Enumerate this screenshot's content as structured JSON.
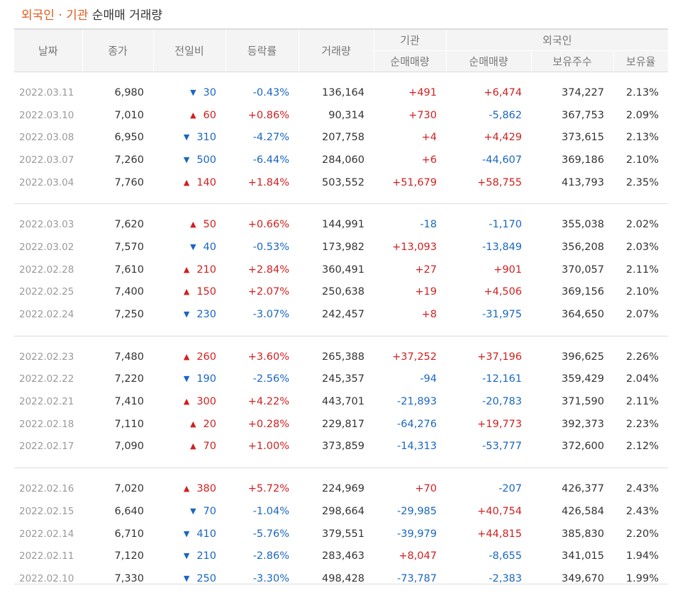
{
  "title": {
    "highlight": "외국인 · 기관",
    "rest": " 순매매 거래량"
  },
  "headers": {
    "date": "날짜",
    "close": "종가",
    "change": "전일비",
    "rate": "등락률",
    "volume": "거래량",
    "institution": "기관",
    "foreign": "외국인",
    "inst_net": "순매매량",
    "foreign_net": "순매매량",
    "holdings": "보유주수",
    "ratio": "보유율"
  },
  "colors": {
    "up": "#d11f1f",
    "down": "#1a66c2",
    "title_accent": "#e05a1e"
  },
  "icons": {
    "up": "up-triangle-icon",
    "down": "down-triangle-icon"
  },
  "groups": [
    [
      {
        "date": "2022.03.11",
        "close": "6,980",
        "dir": "down",
        "change": "30",
        "rate": "-0.43%",
        "volume": "136,164",
        "inst": "+491",
        "foreign": "+6,474",
        "holdings": "374,227",
        "ratio": "2.13%"
      },
      {
        "date": "2022.03.10",
        "close": "7,010",
        "dir": "up",
        "change": "60",
        "rate": "+0.86%",
        "volume": "90,314",
        "inst": "+730",
        "foreign": "-5,862",
        "holdings": "367,753",
        "ratio": "2.09%"
      },
      {
        "date": "2022.03.08",
        "close": "6,950",
        "dir": "down",
        "change": "310",
        "rate": "-4.27%",
        "volume": "207,758",
        "inst": "+4",
        "foreign": "+4,429",
        "holdings": "373,615",
        "ratio": "2.13%"
      },
      {
        "date": "2022.03.07",
        "close": "7,260",
        "dir": "down",
        "change": "500",
        "rate": "-6.44%",
        "volume": "284,060",
        "inst": "+6",
        "foreign": "-44,607",
        "holdings": "369,186",
        "ratio": "2.10%"
      },
      {
        "date": "2022.03.04",
        "close": "7,760",
        "dir": "up",
        "change": "140",
        "rate": "+1.84%",
        "volume": "503,552",
        "inst": "+51,679",
        "foreign": "+58,755",
        "holdings": "413,793",
        "ratio": "2.35%"
      }
    ],
    [
      {
        "date": "2022.03.03",
        "close": "7,620",
        "dir": "up",
        "change": "50",
        "rate": "+0.66%",
        "volume": "144,991",
        "inst": "-18",
        "foreign": "-1,170",
        "holdings": "355,038",
        "ratio": "2.02%"
      },
      {
        "date": "2022.03.02",
        "close": "7,570",
        "dir": "down",
        "change": "40",
        "rate": "-0.53%",
        "volume": "173,982",
        "inst": "+13,093",
        "foreign": "-13,849",
        "holdings": "356,208",
        "ratio": "2.03%"
      },
      {
        "date": "2022.02.28",
        "close": "7,610",
        "dir": "up",
        "change": "210",
        "rate": "+2.84%",
        "volume": "360,491",
        "inst": "+27",
        "foreign": "+901",
        "holdings": "370,057",
        "ratio": "2.11%"
      },
      {
        "date": "2022.02.25",
        "close": "7,400",
        "dir": "up",
        "change": "150",
        "rate": "+2.07%",
        "volume": "250,638",
        "inst": "+19",
        "foreign": "+4,506",
        "holdings": "369,156",
        "ratio": "2.10%"
      },
      {
        "date": "2022.02.24",
        "close": "7,250",
        "dir": "down",
        "change": "230",
        "rate": "-3.07%",
        "volume": "242,457",
        "inst": "+8",
        "foreign": "-31,975",
        "holdings": "364,650",
        "ratio": "2.07%"
      }
    ],
    [
      {
        "date": "2022.02.23",
        "close": "7,480",
        "dir": "up",
        "change": "260",
        "rate": "+3.60%",
        "volume": "265,388",
        "inst": "+37,252",
        "foreign": "+37,196",
        "holdings": "396,625",
        "ratio": "2.26%"
      },
      {
        "date": "2022.02.22",
        "close": "7,220",
        "dir": "down",
        "change": "190",
        "rate": "-2.56%",
        "volume": "245,357",
        "inst": "-94",
        "foreign": "-12,161",
        "holdings": "359,429",
        "ratio": "2.04%"
      },
      {
        "date": "2022.02.21",
        "close": "7,410",
        "dir": "up",
        "change": "300",
        "rate": "+4.22%",
        "volume": "443,701",
        "inst": "-21,893",
        "foreign": "-20,783",
        "holdings": "371,590",
        "ratio": "2.11%"
      },
      {
        "date": "2022.02.18",
        "close": "7,110",
        "dir": "up",
        "change": "20",
        "rate": "+0.28%",
        "volume": "229,817",
        "inst": "-64,276",
        "foreign": "+19,773",
        "holdings": "392,373",
        "ratio": "2.23%"
      },
      {
        "date": "2022.02.17",
        "close": "7,090",
        "dir": "up",
        "change": "70",
        "rate": "+1.00%",
        "volume": "373,859",
        "inst": "-14,313",
        "foreign": "-53,777",
        "holdings": "372,600",
        "ratio": "2.12%"
      }
    ],
    [
      {
        "date": "2022.02.16",
        "close": "7,020",
        "dir": "up",
        "change": "380",
        "rate": "+5.72%",
        "volume": "224,969",
        "inst": "+70",
        "foreign": "-207",
        "holdings": "426,377",
        "ratio": "2.43%"
      },
      {
        "date": "2022.02.15",
        "close": "6,640",
        "dir": "down",
        "change": "70",
        "rate": "-1.04%",
        "volume": "298,664",
        "inst": "-29,985",
        "foreign": "+40,754",
        "holdings": "426,584",
        "ratio": "2.43%"
      },
      {
        "date": "2022.02.14",
        "close": "6,710",
        "dir": "down",
        "change": "410",
        "rate": "-5.76%",
        "volume": "379,551",
        "inst": "-39,979",
        "foreign": "+44,815",
        "holdings": "385,830",
        "ratio": "2.20%"
      },
      {
        "date": "2022.02.11",
        "close": "7,120",
        "dir": "down",
        "change": "210",
        "rate": "-2.86%",
        "volume": "283,463",
        "inst": "+8,047",
        "foreign": "-8,655",
        "holdings": "341,015",
        "ratio": "1.94%"
      },
      {
        "date": "2022.02.10",
        "close": "7,330",
        "dir": "down",
        "change": "250",
        "rate": "-3.30%",
        "volume": "498,428",
        "inst": "-73,787",
        "foreign": "-2,383",
        "holdings": "349,670",
        "ratio": "1.99%"
      }
    ]
  ]
}
